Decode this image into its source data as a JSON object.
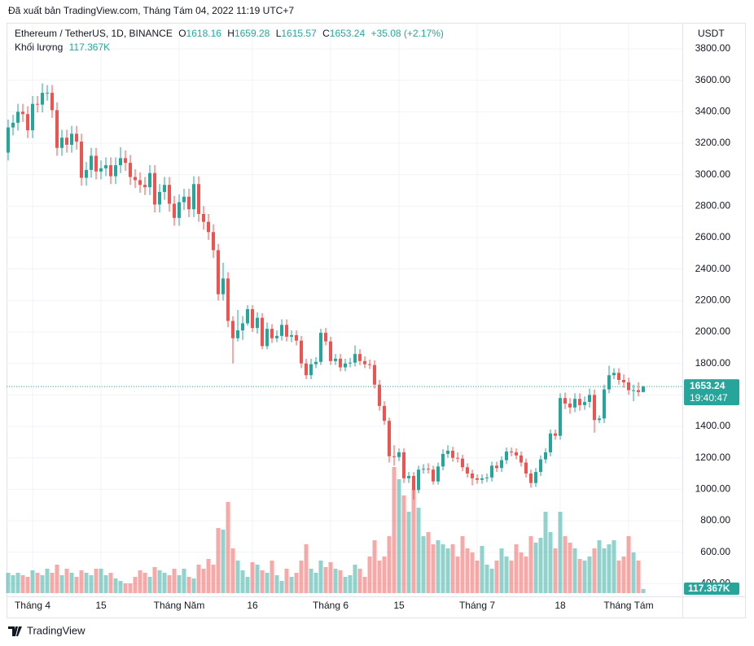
{
  "header": {
    "published": "Đã xuất bản TradingView.com, Tháng Tám 04, 2022 11:19 UTC+7"
  },
  "chart_data": {
    "type": "candlestick",
    "title": "Ethereum / TetherUS, 1D, BINANCE",
    "ohlc_labels": [
      "O",
      "H",
      "L",
      "C"
    ],
    "change_label": "+35.08 (+2.17%)",
    "volume_title": "Khối lượng",
    "y_unit": "USDT",
    "countdown": "19:40:47",
    "up_color": "#26a69a",
    "down_color": "#ef5350",
    "grid": true,
    "ylim": [
      340,
      3955
    ],
    "yticks": [
      {
        "value": 400,
        "label": "400.00"
      },
      {
        "value": 600,
        "label": "600.00"
      },
      {
        "value": 800,
        "label": "800.00"
      },
      {
        "value": 1000,
        "label": "1000.00"
      },
      {
        "value": 1200,
        "label": "1200.00"
      },
      {
        "value": 1400,
        "label": "1400.00"
      },
      {
        "value": 1600,
        "label": "1600.00"
      },
      {
        "value": 1800,
        "label": "1800.00"
      },
      {
        "value": 2000,
        "label": "2000.00"
      },
      {
        "value": 2200,
        "label": "2200.00"
      },
      {
        "value": 2400,
        "label": "2400.00"
      },
      {
        "value": 2600,
        "label": "2600.00"
      },
      {
        "value": 2800,
        "label": "2800.00"
      },
      {
        "value": 3000,
        "label": "3000.00"
      },
      {
        "value": 3200,
        "label": "3200.00"
      },
      {
        "value": 3400,
        "label": "3400.00"
      },
      {
        "value": 3600,
        "label": "3600.00"
      },
      {
        "value": 3800,
        "label": "3800.00"
      }
    ],
    "categories": [
      null,
      null,
      null,
      null,
      null,
      "Tháng 4",
      null,
      null,
      null,
      null,
      null,
      null,
      null,
      null,
      null,
      null,
      null,
      null,
      null,
      "15",
      null,
      null,
      null,
      null,
      null,
      null,
      null,
      null,
      null,
      null,
      null,
      null,
      null,
      null,
      null,
      "Tháng Năm",
      null,
      null,
      null,
      null,
      null,
      null,
      null,
      null,
      null,
      null,
      null,
      null,
      null,
      null,
      "16",
      null,
      null,
      null,
      null,
      null,
      null,
      null,
      null,
      null,
      null,
      null,
      null,
      null,
      null,
      null,
      "Tháng 6",
      null,
      null,
      null,
      null,
      null,
      null,
      null,
      null,
      null,
      null,
      null,
      null,
      null,
      "15",
      null,
      null,
      null,
      null,
      null,
      null,
      null,
      null,
      null,
      null,
      null,
      null,
      null,
      null,
      null,
      "Tháng 7",
      null,
      null,
      null,
      null,
      null,
      null,
      null,
      null,
      null,
      null,
      null,
      null,
      null,
      null,
      null,
      null,
      "18",
      null,
      null,
      null,
      null,
      null,
      null,
      null,
      null,
      null,
      null,
      null,
      null,
      null,
      "Tháng Tám",
      null,
      null,
      null
    ],
    "open": [
      3140,
      3300,
      3330,
      3400,
      3385,
      3282,
      3450,
      3445,
      3520,
      3520,
      3410,
      3170,
      3235,
      3190,
      3260,
      3210,
      2980,
      3030,
      3120,
      3020,
      3040,
      3060,
      2990,
      3060,
      3105,
      3075,
      2985,
      2965,
      2935,
      2920,
      3010,
      2810,
      2890,
      2935,
      2815,
      2725,
      2825,
      2860,
      2780,
      2940,
      2750,
      2700,
      2635,
      2520,
      2240,
      2340,
      2070,
      1960,
      2010,
      2055,
      2145,
      2025,
      2090,
      1910,
      2020,
      1960,
      1975,
      2045,
      1970,
      1980,
      1945,
      1800,
      1725,
      1795,
      1810,
      1995,
      1940,
      1815,
      1830,
      1775,
      1800,
      1805,
      1860,
      1815,
      1795,
      1790,
      1665,
      1530,
      1435,
      1210,
      1205,
      1235,
      1070,
      1085,
      995,
      1125,
      1130,
      1125,
      1050,
      1145,
      1225,
      1245,
      1200,
      1195,
      1140,
      1100,
      1070,
      1060,
      1070,
      1075,
      1150,
      1135,
      1185,
      1240,
      1235,
      1215,
      1170,
      1100,
      1040,
      1110,
      1190,
      1235,
      1355,
      1340,
      1580,
      1545,
      1520,
      1575,
      1535,
      1555,
      1600,
      1440,
      1450,
      1635,
      1725,
      1740,
      1695,
      1680,
      1630,
      1630,
      1618.16
    ],
    "high": [
      3350,
      3380,
      3450,
      3450,
      3435,
      3500,
      3500,
      3580,
      3570,
      3570,
      3460,
      3285,
      3285,
      3310,
      3310,
      3260,
      3080,
      3170,
      3170,
      3090,
      3110,
      3110,
      3110,
      3175,
      3155,
      3125,
      3035,
      3015,
      2985,
      3060,
      3060,
      2940,
      2985,
      2985,
      2865,
      2875,
      2910,
      2910,
      2990,
      2990,
      2800,
      2750,
      2685,
      2560,
      2440,
      2380,
      2100,
      2140,
      2100,
      2170,
      2170,
      2125,
      2120,
      2060,
      2050,
      2010,
      2080,
      2080,
      2010,
      2010,
      1975,
      1830,
      1830,
      1840,
      2020,
      2025,
      1970,
      1860,
      1860,
      1830,
      1835,
      1915,
      1890,
      1845,
      1825,
      1820,
      1695,
      1560,
      1455,
      1280,
      1260,
      1260,
      1110,
      1110,
      1150,
      1160,
      1165,
      1150,
      1170,
      1255,
      1280,
      1270,
      1235,
      1220,
      1165,
      1125,
      1095,
      1095,
      1100,
      1175,
      1175,
      1210,
      1265,
      1265,
      1260,
      1240,
      1195,
      1125,
      1135,
      1215,
      1260,
      1380,
      1380,
      1610,
      1615,
      1580,
      1610,
      1610,
      1590,
      1640,
      1635,
      1470,
      1665,
      1785,
      1770,
      1770,
      1730,
      1710,
      1665,
      1680,
      1659.28
    ],
    "low": [
      3090,
      3250,
      3280,
      3335,
      3232,
      3232,
      3395,
      3395,
      3470,
      3360,
      3120,
      3120,
      3140,
      3140,
      3160,
      2930,
      2930,
      2980,
      2970,
      2970,
      2990,
      2940,
      2940,
      3010,
      3025,
      2935,
      2915,
      2885,
      2870,
      2870,
      2760,
      2760,
      2840,
      2765,
      2675,
      2675,
      2775,
      2730,
      2730,
      2700,
      2650,
      2585,
      2470,
      2200,
      2200,
      2030,
      1800,
      1940,
      1950,
      2040,
      2000,
      1990,
      1890,
      1890,
      1930,
      1935,
      1945,
      1940,
      1935,
      1915,
      1770,
      1700,
      1700,
      1770,
      1790,
      1915,
      1790,
      1790,
      1750,
      1750,
      1775,
      1780,
      1790,
      1770,
      1765,
      1640,
      1500,
      1410,
      1170,
      1150,
      1180,
      1040,
      1040,
      935,
      975,
      1100,
      1100,
      1030,
      1030,
      1120,
      1200,
      1175,
      1170,
      1115,
      1075,
      1025,
      1035,
      1035,
      1045,
      1050,
      1110,
      1110,
      1160,
      1210,
      1190,
      1145,
      1075,
      1010,
      1015,
      1085,
      1165,
      1210,
      1315,
      1315,
      1510,
      1480,
      1490,
      1500,
      1505,
      1520,
      1360,
      1420,
      1420,
      1610,
      1700,
      1665,
      1645,
      1600,
      1560,
      1590,
      1615.57
    ],
    "close": [
      3300,
      3330,
      3400,
      3385,
      3282,
      3450,
      3445,
      3520,
      3520,
      3410,
      3170,
      3235,
      3190,
      3260,
      3210,
      2980,
      3030,
      3120,
      3020,
      3040,
      3060,
      2990,
      3060,
      3105,
      3075,
      2985,
      2965,
      2935,
      2920,
      3010,
      2810,
      2890,
      2935,
      2815,
      2725,
      2825,
      2860,
      2780,
      2940,
      2750,
      2700,
      2635,
      2520,
      2240,
      2340,
      2070,
      1960,
      2010,
      2055,
      2145,
      2025,
      2090,
      1910,
      2020,
      1960,
      1975,
      2045,
      1970,
      1980,
      1945,
      1800,
      1725,
      1795,
      1810,
      1995,
      1940,
      1815,
      1830,
      1775,
      1800,
      1805,
      1860,
      1815,
      1795,
      1790,
      1665,
      1530,
      1435,
      1210,
      1205,
      1235,
      1070,
      1085,
      995,
      1125,
      1130,
      1125,
      1050,
      1145,
      1225,
      1245,
      1200,
      1195,
      1140,
      1100,
      1070,
      1060,
      1070,
      1075,
      1150,
      1135,
      1185,
      1240,
      1235,
      1215,
      1170,
      1100,
      1040,
      1110,
      1190,
      1235,
      1355,
      1340,
      1580,
      1545,
      1520,
      1575,
      1535,
      1555,
      1600,
      1440,
      1450,
      1635,
      1725,
      1740,
      1695,
      1680,
      1630,
      1630,
      1618.16,
      1653.24
    ],
    "volume": {
      "values": [
        587.5,
        517,
        587.5,
        517,
        470,
        658,
        587.5,
        517,
        705,
        587.5,
        822.5,
        517,
        705,
        587.5,
        470,
        658,
        587.5,
        517,
        705,
        705,
        517,
        587.5,
        423,
        352.5,
        282,
        282,
        470,
        658,
        587.5,
        470,
        752,
        658,
        587.5,
        517,
        705,
        517,
        705,
        470,
        423,
        822.5,
        705,
        987,
        822.5,
        1880,
        1833,
        2632,
        1292.5,
        940,
        658,
        470,
        893,
        822.5,
        658,
        587.5,
        940,
        517,
        352.5,
        705,
        470,
        587.5,
        940,
        1410,
        705,
        587.5,
        940,
        752,
        893,
        705,
        658,
        470,
        517,
        822.5,
        705,
        470,
        1057.5,
        1527.5,
        940,
        1057.5,
        1645,
        3642.5,
        3290,
        2820,
        2350,
        3008,
        2467.5,
        1645,
        1762.5,
        1410,
        1527.5,
        1410,
        1292.5,
        1410,
        1057.5,
        1645,
        1292.5,
        1175,
        940,
        1363,
        822.5,
        705,
        940,
        1292.5,
        1057.5,
        940,
        1410,
        1175,
        1057.5,
        1645,
        1457,
        1598,
        2350,
        1762.5,
        1292.5,
        2350,
        1645,
        1457,
        1292.5,
        987,
        940,
        1057.5,
        1292.5,
        1527.5,
        1292.5,
        1410,
        1527.5,
        940,
        1057.5,
        1645,
        1175,
        940,
        117.367
      ],
      "value_label": "117.367K"
    }
  },
  "footer": {
    "brand": "TradingView"
  }
}
